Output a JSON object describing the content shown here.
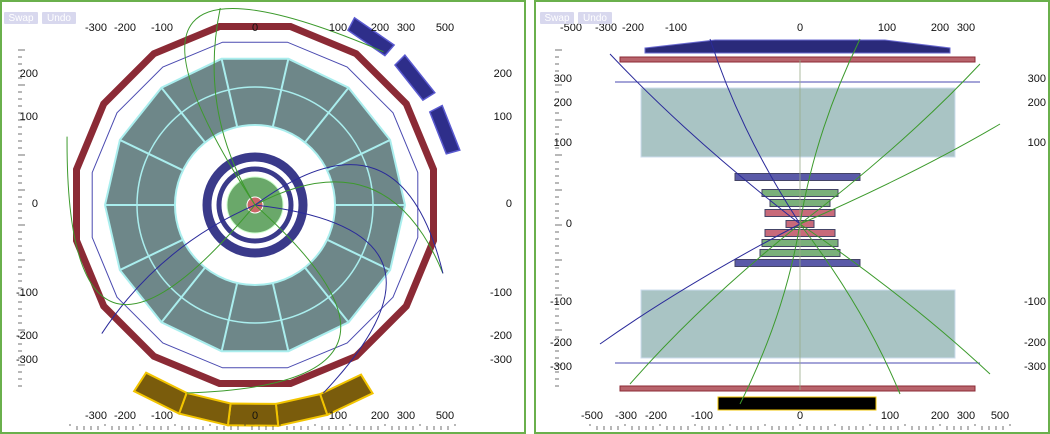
{
  "panels": [
    {
      "buttons": [
        "Swap",
        "Undo"
      ],
      "top_axis": [
        "-300",
        "-200",
        "-100",
        "0",
        "100",
        "200",
        "300",
        "500"
      ],
      "bottom_axis": [
        "-300",
        "-200",
        "-100",
        "0",
        "100",
        "200",
        "300",
        "500"
      ],
      "left_axis": [
        "200",
        "100",
        "0",
        "-100",
        "-200",
        "-300"
      ],
      "right_axis": [
        "200",
        "100",
        "0",
        "-100",
        "-200",
        "-300"
      ]
    },
    {
      "buttons": [
        "Swap",
        "Undo"
      ],
      "top_axis": [
        "-500",
        "-300",
        "-200",
        "-100",
        "0",
        "100",
        "200",
        "300"
      ],
      "bottom_axis": [
        "-500",
        "-300",
        "-200",
        "-100",
        "0",
        "100",
        "200",
        "300",
        "500"
      ],
      "left_axis": [
        "300",
        "200",
        "100",
        "0",
        "-100",
        "-200",
        "-300"
      ],
      "right_axis": [
        "300",
        "200",
        "100",
        "-100",
        "-200",
        "-300"
      ]
    }
  ]
}
